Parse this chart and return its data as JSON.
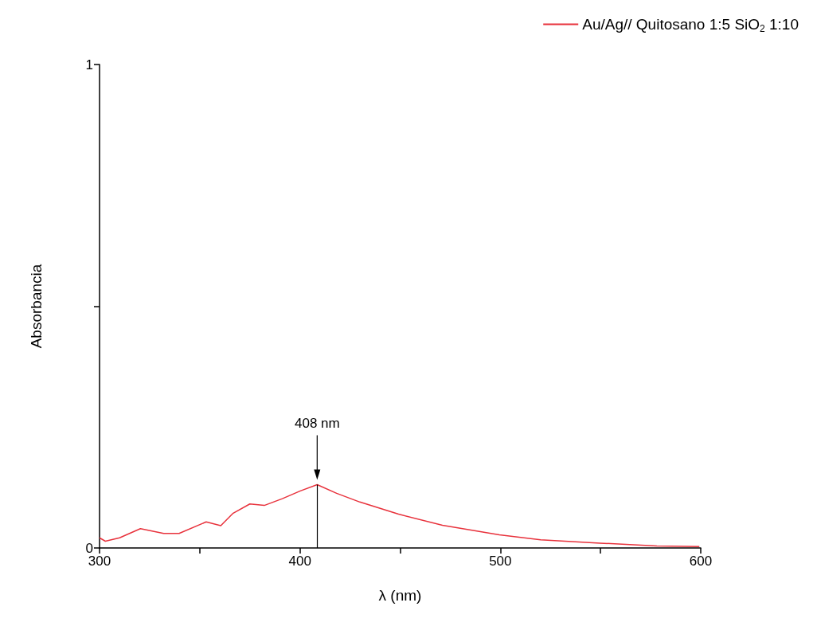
{
  "chart_data": {
    "type": "line",
    "xlabel": "λ (nm)",
    "ylabel": "Absorbancia",
    "x": [
      300,
      302.9,
      310,
      320.4,
      332,
      339.7,
      353.2,
      360.5,
      366.7,
      375,
      382.2,
      391.2,
      400.2,
      408.6,
      418.3,
      429.9,
      449.2,
      471.1,
      499.5,
      520.1,
      549.7,
      578.1,
      599.3
    ],
    "series": [
      {
        "name": "Au/Ag// Quitosano 1:5 SiO$_{2}$ 1:10",
        "color": "#e8323c",
        "values": [
          0.021,
          0.014,
          0.021,
          0.04,
          0.03,
          0.03,
          0.054,
          0.046,
          0.072,
          0.091,
          0.088,
          0.102,
          0.118,
          0.131,
          0.113,
          0.095,
          0.07,
          0.047,
          0.027,
          0.017,
          0.01,
          0.004,
          0.003
        ]
      }
    ],
    "xlim": [
      300,
      600
    ],
    "xticks": [
      300,
      {
        "value": 350,
        "label": null
      },
      400,
      {
        "value": 450,
        "label": null
      },
      500,
      {
        "value": 550,
        "label": null
      },
      600
    ],
    "ylim": [
      0,
      1
    ],
    "yticks": [
      0,
      {
        "value": 0.5,
        "label": null
      },
      1
    ],
    "ref_lines": [
      {
        "axis": "x",
        "value": 408.6,
        "label": "408 nm",
        "color": "#000000"
      }
    ],
    "legend": "top right",
    "grid": false,
    "marker": "none",
    "line_style": "solid"
  }
}
